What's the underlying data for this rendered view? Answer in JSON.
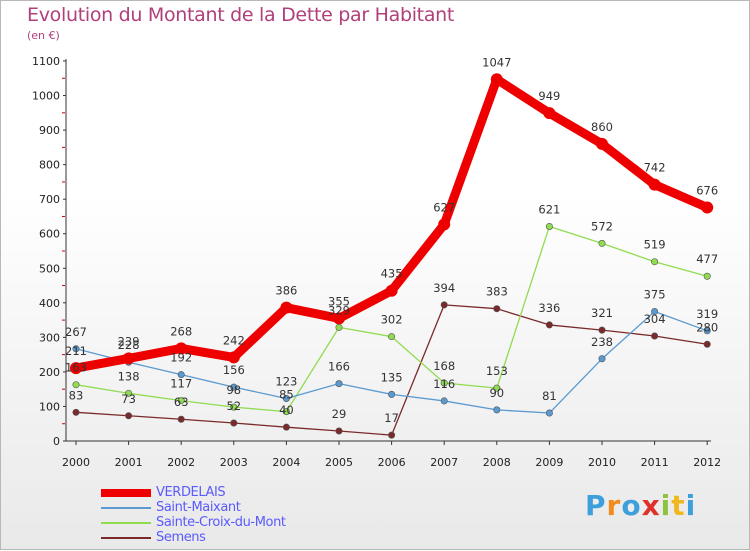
{
  "header": {
    "title": "Evolution du Montant de la Dette par Habitant",
    "unit": "(en €)"
  },
  "logo": {
    "text": "Proxiti",
    "letter_colors": [
      "#3da0dc",
      "#f08c20",
      "#3da0dc",
      "#e0302a",
      "#8cc43c",
      "#f0b820",
      "#3da0dc"
    ]
  },
  "chart_data": {
    "type": "line",
    "categories": [
      "2000",
      "2001",
      "2002",
      "2003",
      "2004",
      "2005",
      "2006",
      "2007",
      "2008",
      "2009",
      "2010",
      "2011",
      "2012"
    ],
    "ylim": [
      0,
      1100
    ],
    "yticks": [
      0,
      100,
      200,
      300,
      400,
      500,
      600,
      700,
      800,
      900,
      1000,
      1100
    ],
    "grid": false,
    "legend_position": "bottom-left",
    "series": [
      {
        "name": "VERDELAIS",
        "color": "#ee0000",
        "values": [
          211,
          239,
          268,
          242,
          386,
          355,
          435,
          627,
          1047,
          949,
          860,
          742,
          676
        ]
      },
      {
        "name": "Saint-Maixant",
        "color": "#5a9ad0",
        "values": [
          267,
          228,
          192,
          156,
          123,
          166,
          135,
          116,
          90,
          81,
          238,
          375,
          319
        ]
      },
      {
        "name": "Sainte-Croix-du-Mont",
        "color": "#90dc50",
        "values": [
          163,
          138,
          117,
          98,
          85,
          329,
          302,
          168,
          153,
          621,
          572,
          519,
          477
        ]
      },
      {
        "name": "Semens",
        "color": "#7a2a2a",
        "values": [
          83,
          73,
          63,
          52,
          40,
          29,
          17,
          394,
          383,
          336,
          321,
          304,
          280
        ]
      }
    ],
    "data_labels": [
      {
        "series": 0,
        "labels": [
          "211",
          "239",
          "268",
          "242",
          "386",
          "355",
          "435",
          "627",
          "1047",
          "949",
          "860",
          "742",
          "676"
        ]
      },
      {
        "series": 1,
        "labels": [
          "267",
          "228",
          "192",
          "156",
          "123",
          "166",
          "135",
          "116",
          "90",
          "81",
          "238",
          "375",
          "319"
        ]
      },
      {
        "series": 2,
        "labels": [
          "163",
          "138",
          "117",
          "98",
          "85",
          "329",
          "302",
          "168",
          "153",
          "621",
          "572",
          "519",
          "477"
        ]
      },
      {
        "series": 3,
        "labels": [
          "83",
          "73",
          "63",
          "52",
          "40",
          "29",
          "17",
          "394",
          "383",
          "336",
          "321",
          "304",
          "280"
        ]
      }
    ]
  }
}
